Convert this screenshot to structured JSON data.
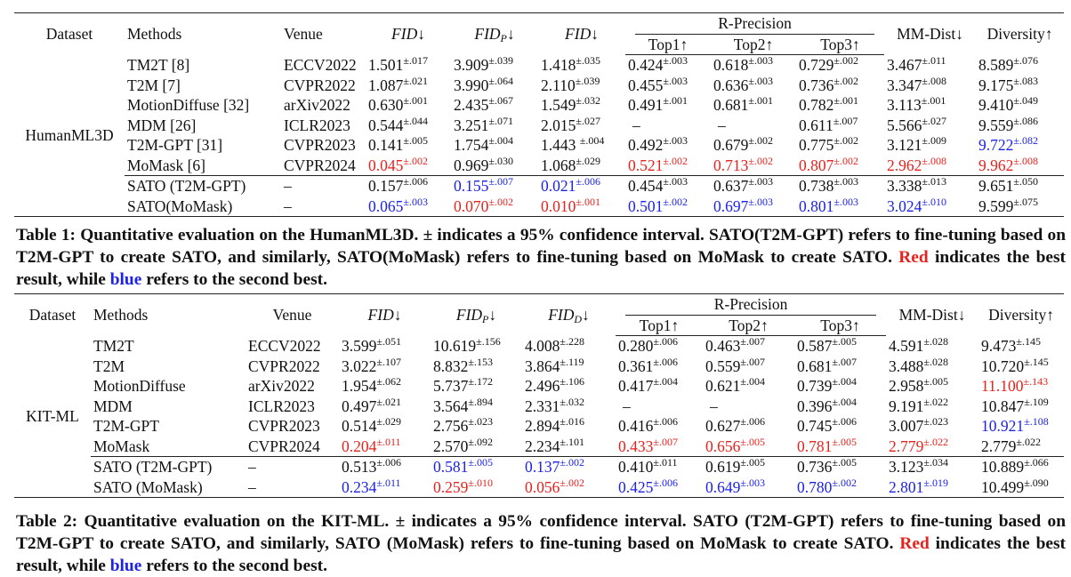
{
  "colors": {
    "best": "#e8211d",
    "second": "#1c22e6"
  },
  "table1": {
    "headers": {
      "dataset": "Dataset",
      "methods": "Methods",
      "venue": "Venue",
      "fid": "FID↓",
      "fidp": "FID",
      "fidp_sub": "P",
      "fidp_arrow": "↓",
      "fid2": "FID↓",
      "rprecision": "R-Precision",
      "top1": "Top1↑",
      "top2": "Top2↑",
      "top3": "Top3↑",
      "mmdist": "MM-Dist↓",
      "diversity": "Diversity↑"
    },
    "dataset": "HumanML3D",
    "rows": [
      {
        "method": "TM2T [8]",
        "venue": "ECCV2022",
        "c": [
          [
            "1.501",
            "±.017",
            ""
          ],
          [
            "3.909",
            "±.039",
            ""
          ],
          [
            "1.418",
            "±.035",
            ""
          ],
          [
            "0.424",
            "±.003",
            ""
          ],
          [
            "0.618",
            "±.003",
            ""
          ],
          [
            "0.729",
            "±.002",
            ""
          ],
          [
            "3.467",
            "±.011",
            ""
          ],
          [
            "8.589",
            "±.076",
            ""
          ]
        ]
      },
      {
        "method": "T2M [7]",
        "venue": "CVPR2022",
        "c": [
          [
            "1.087",
            "±.021",
            ""
          ],
          [
            "3.990",
            "±.064",
            ""
          ],
          [
            "2.110",
            "±.039",
            ""
          ],
          [
            "0.455",
            "±.003",
            ""
          ],
          [
            "0.636",
            "±.003",
            ""
          ],
          [
            "0.736",
            "±.002",
            ""
          ],
          [
            "3.347",
            "±.008",
            ""
          ],
          [
            "9.175",
            "±.083",
            ""
          ]
        ]
      },
      {
        "method": "MotionDiffuse [32]",
        "venue": "arXiv2022",
        "c": [
          [
            "0.630",
            "±.001",
            ""
          ],
          [
            "2.435",
            "±.067",
            ""
          ],
          [
            "1.549",
            "±.032",
            ""
          ],
          [
            "0.491",
            "±.001",
            ""
          ],
          [
            "0.681",
            "±.001",
            ""
          ],
          [
            "0.782",
            "±.001",
            ""
          ],
          [
            "3.113",
            "±.001",
            ""
          ],
          [
            "9.410",
            "±.049",
            ""
          ]
        ]
      },
      {
        "method": "MDM [26]",
        "venue": "ICLR2023",
        "c": [
          [
            "0.544",
            "±.044",
            ""
          ],
          [
            "3.251",
            "±.071",
            ""
          ],
          [
            "2.015",
            "±.027",
            ""
          ],
          [
            "–",
            "",
            ""
          ],
          [
            "–",
            "",
            ""
          ],
          [
            "0.611",
            "±.007",
            ""
          ],
          [
            "5.566",
            "±.027",
            ""
          ],
          [
            "9.559",
            "±.086",
            ""
          ]
        ]
      },
      {
        "method": "T2M-GPT [31]",
        "venue": "CVPR2023",
        "c": [
          [
            "0.141",
            "±.005",
            ""
          ],
          [
            "1.754",
            "±.004",
            ""
          ],
          [
            "1.443 ",
            "±.004",
            ""
          ],
          [
            "0.492",
            "±.003",
            ""
          ],
          [
            "0.679",
            "±.002",
            ""
          ],
          [
            "0.775",
            "±.002",
            ""
          ],
          [
            "3.121",
            "±.009",
            ""
          ],
          [
            "9.722",
            "±.082",
            "blue"
          ]
        ]
      },
      {
        "method": "MoMask [6]",
        "venue": "CVPR2024",
        "c": [
          [
            "0.045",
            "±.002",
            "red"
          ],
          [
            "0.969",
            "±.030",
            ""
          ],
          [
            "1.068",
            "±.029",
            ""
          ],
          [
            "0.521",
            "±.002",
            "red"
          ],
          [
            "0.713",
            "±.002",
            "red"
          ],
          [
            "0.807",
            "±.002",
            "red"
          ],
          [
            "2.962",
            "±.008",
            "red"
          ],
          [
            "9.962",
            "±.008",
            "red"
          ]
        ]
      },
      {
        "method": "SATO (T2M-GPT)",
        "venue": "–",
        "c": [
          [
            "0.157",
            "±.006",
            ""
          ],
          [
            "0.155",
            "±.007",
            "blue"
          ],
          [
            "0.021",
            "±.006",
            "blue"
          ],
          [
            "0.454",
            "±.003",
            ""
          ],
          [
            "0.637",
            "±.003",
            ""
          ],
          [
            "0.738",
            "±.003",
            ""
          ],
          [
            "3.338",
            "±.013",
            ""
          ],
          [
            "9.651",
            "±.050",
            ""
          ]
        ]
      },
      {
        "method": "SATO(MoMask)",
        "venue": "–",
        "c": [
          [
            "0.065",
            "±.003",
            "blue"
          ],
          [
            "0.070",
            "±.002",
            "red"
          ],
          [
            "0.010",
            "±.001",
            "red"
          ],
          [
            "0.501",
            "±.002",
            "blue"
          ],
          [
            "0.697",
            "±.003",
            "blue"
          ],
          [
            "0.801",
            "±.003",
            "blue"
          ],
          [
            "3.024",
            "±.010",
            "blue"
          ],
          [
            "9.599",
            "±.075",
            ""
          ]
        ]
      }
    ],
    "caption": {
      "p1": "Table 1: Quantitative evaluation on the HumanML3D. ± indicates a 95% confidence interval. SATO(T2M-GPT) refers to fine-tuning based on T2M-GPT to create SATO, and similarly, SATO(MoMask) refers to fine-tuning based on MoMask to create SATO.",
      "red_word": "Red",
      "p2": "indicates the best result, while",
      "blue_word": "blue",
      "p3": "refers to the second best."
    }
  },
  "table2": {
    "headers": {
      "dataset": "Dataset",
      "methods": "Methods",
      "venue": "Venue",
      "fid": "FID↓",
      "fidp": "FID",
      "fidp_sub": "P",
      "fidp_arrow": "↓",
      "fidd": "FID",
      "fidd_sub": "D",
      "fidd_arrow": "↓",
      "rprecision": "R-Precision",
      "top1": "Top1↑",
      "top2": "Top2↑",
      "top3": "Top3↑",
      "mmdist": "MM-Dist↓",
      "diversity": "Diversity↑"
    },
    "dataset": "KIT-ML",
    "rows": [
      {
        "method": "TM2T",
        "venue": "ECCV2022",
        "c": [
          [
            "3.599",
            "±.051",
            ""
          ],
          [
            "10.619",
            "±.156",
            ""
          ],
          [
            "4.008",
            "±.228",
            ""
          ],
          [
            "0.280",
            "±.006",
            ""
          ],
          [
            "0.463",
            "±.007",
            ""
          ],
          [
            "0.587",
            "±.005",
            ""
          ],
          [
            "4.591",
            "±.028",
            ""
          ],
          [
            "9.473",
            "±.145",
            ""
          ]
        ]
      },
      {
        "method": "T2M",
        "venue": "CVPR2022",
        "c": [
          [
            "3.022",
            "±.107",
            ""
          ],
          [
            "8.832",
            "±.153",
            ""
          ],
          [
            "3.864",
            "±.119",
            ""
          ],
          [
            "0.361",
            "±.006",
            ""
          ],
          [
            "0.559",
            "±.007",
            ""
          ],
          [
            "0.681",
            "±.007",
            ""
          ],
          [
            "3.488",
            "±.028",
            ""
          ],
          [
            "10.720",
            "±.145",
            ""
          ]
        ]
      },
      {
        "method": "MotionDiffuse",
        "venue": "arXiv2022",
        "c": [
          [
            "1.954",
            "±.062",
            ""
          ],
          [
            "5.737",
            "±.172",
            ""
          ],
          [
            "2.496",
            "±.106",
            ""
          ],
          [
            "0.417",
            "±.004",
            ""
          ],
          [
            "0.621",
            "±.004",
            ""
          ],
          [
            "0.739",
            "±.004",
            ""
          ],
          [
            "2.958",
            "±.005",
            ""
          ],
          [
            "11.100",
            "±.143",
            "red"
          ]
        ]
      },
      {
        "method": "MDM",
        "venue": "ICLR2023",
        "c": [
          [
            "0.497",
            "±.021",
            ""
          ],
          [
            "3.564",
            "±.894",
            ""
          ],
          [
            "2.331",
            "±.032",
            ""
          ],
          [
            "–",
            "",
            ""
          ],
          [
            "–",
            "",
            ""
          ],
          [
            "0.396",
            "±.004",
            ""
          ],
          [
            "9.191",
            "±.022",
            ""
          ],
          [
            "10.847",
            "±.109",
            ""
          ]
        ]
      },
      {
        "method": "T2M-GPT",
        "venue": "CVPR2023",
        "c": [
          [
            "0.514",
            "±.029",
            ""
          ],
          [
            "2.756",
            "±.023",
            ""
          ],
          [
            "2.894",
            "±.016",
            ""
          ],
          [
            "0.416",
            "±.006",
            ""
          ],
          [
            "0.627",
            "±.006",
            ""
          ],
          [
            "0.745",
            "±.006",
            ""
          ],
          [
            "3.007",
            "±.023",
            ""
          ],
          [
            "10.921",
            "±.108",
            "blue"
          ]
        ]
      },
      {
        "method": "MoMask",
        "venue": "CVPR2024",
        "c": [
          [
            "0.204",
            "±.011",
            "red"
          ],
          [
            "2.570",
            "±.092",
            ""
          ],
          [
            "2.234",
            "±.101",
            ""
          ],
          [
            "0.433",
            "±.007",
            "red"
          ],
          [
            "0.656",
            "±.005",
            "red"
          ],
          [
            "0.781",
            "±.005",
            "red"
          ],
          [
            "2.779",
            "±.022",
            "red"
          ],
          [
            "2.779",
            "±.022",
            ""
          ]
        ]
      },
      {
        "method": "SATO (T2M-GPT)",
        "venue": "–",
        "c": [
          [
            "0.513",
            "±.006",
            ""
          ],
          [
            "0.581",
            "±.005",
            "blue"
          ],
          [
            "0.137",
            "±.002",
            "blue"
          ],
          [
            "0.410",
            "±.011",
            ""
          ],
          [
            "0.619",
            "±.005",
            ""
          ],
          [
            "0.736",
            "±.005",
            ""
          ],
          [
            "3.123",
            "±.034",
            ""
          ],
          [
            "10.889",
            "±.066",
            ""
          ]
        ]
      },
      {
        "method": "SATO (MoMask)",
        "venue": "–",
        "c": [
          [
            "0.234",
            "±.011",
            "blue"
          ],
          [
            "0.259",
            "±.010",
            "red"
          ],
          [
            "0.056",
            "±.002",
            "red"
          ],
          [
            "0.425",
            "±.006",
            "blue"
          ],
          [
            "0.649",
            "±.003",
            "blue"
          ],
          [
            "0.780",
            "±.002",
            "blue"
          ],
          [
            "2.801",
            "±.019",
            "blue"
          ],
          [
            "10.499",
            "±.090",
            ""
          ]
        ]
      }
    ],
    "caption": {
      "p1": "Table 2: Quantitative evaluation on the KIT-ML. ± indicates a 95% confidence interval. SATO (T2M-GPT) refers to fine-tuning based on T2M-GPT to create SATO, and similarly, SATO (MoMask) refers to fine-tuning based on MoMask to create SATO.",
      "red_word": "Red",
      "p2": "indicates the best result, while",
      "blue_word": "blue",
      "p3": "refers to the second best."
    }
  }
}
